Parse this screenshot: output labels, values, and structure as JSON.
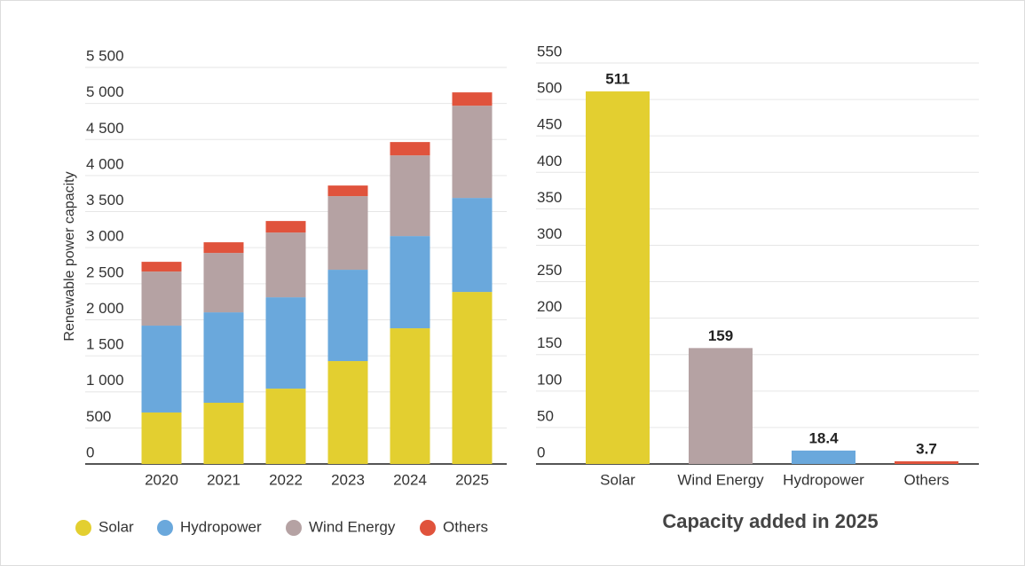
{
  "chart_data": [
    {
      "type": "stacked_bar",
      "ylabel": "Renewable power capacity",
      "categories": [
        "2020",
        "2021",
        "2022",
        "2023",
        "2024",
        "2025"
      ],
      "series": [
        {
          "name": "Solar",
          "color": "#e3cf30",
          "values": [
            714,
            849,
            1045,
            1427,
            1882,
            2386
          ]
        },
        {
          "name": "Hydropower",
          "color": "#6aa8dc",
          "values": [
            1205,
            1254,
            1267,
            1267,
            1279,
            1304
          ]
        },
        {
          "name": "Wind Energy",
          "color": "#b5a2a3",
          "values": [
            750,
            824,
            898,
            1021,
            1119,
            1279
          ]
        },
        {
          "name": "Others",
          "color": "#e0533c",
          "values": [
            135,
            148,
            160,
            147,
            185,
            185
          ]
        }
      ],
      "ylim": [
        0,
        5500
      ],
      "yticks": [
        0,
        500,
        {
          "value": 1000,
          "label": "1 000"
        },
        {
          "value": 1500,
          "label": "1 500"
        },
        {
          "value": 2000,
          "label": "2 000"
        },
        {
          "value": 2500,
          "label": "2 500"
        },
        {
          "value": 3000,
          "label": "3 000"
        },
        {
          "value": 3500,
          "label": "3 500"
        },
        {
          "value": 4000,
          "label": "4 000"
        },
        {
          "value": 4500,
          "label": "4 500"
        },
        {
          "value": 5000,
          "label": "5 000"
        },
        {
          "value": 5500,
          "label": "5 500"
        }
      ],
      "grid": true,
      "legend": "bottom"
    },
    {
      "type": "bar",
      "title": "Capacity added in 2025",
      "categories": [
        "Solar",
        "Wind Energy",
        "Hydropower",
        "Others"
      ],
      "values": [
        511,
        159,
        18.4,
        3.7
      ],
      "colors": [
        "#e3cf30",
        "#b5a2a3",
        "#6aa8dc",
        "#e0533c"
      ],
      "ylim": [
        0,
        550
      ],
      "yticks": [
        0,
        50,
        100,
        150,
        200,
        250,
        300,
        350,
        400,
        450,
        500,
        550
      ],
      "grid": true
    }
  ]
}
